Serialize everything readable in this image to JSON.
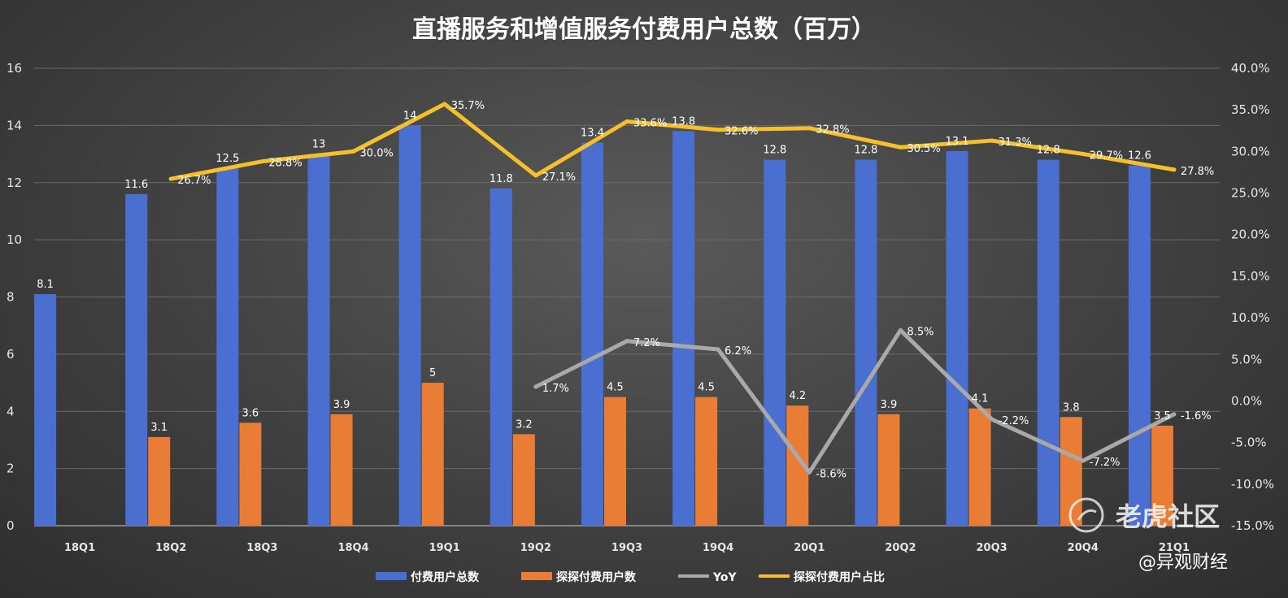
{
  "chart_data": {
    "type": "bar",
    "title": "直播服务和增值服务付费用户总数（百万）",
    "categories": [
      "18Q1",
      "18Q2",
      "18Q3",
      "18Q4",
      "19Q1",
      "19Q2",
      "19Q3",
      "19Q4",
      "20Q1",
      "20Q2",
      "20Q3",
      "20Q4",
      "21Q1"
    ],
    "left_axis": {
      "min": 0,
      "max": 16,
      "step": 2,
      "ticks": [
        "0",
        "2",
        "4",
        "6",
        "8",
        "10",
        "12",
        "14",
        "16"
      ]
    },
    "right_axis": {
      "min": -15,
      "max": 40,
      "step": 5,
      "ticks": [
        "-15.0%",
        "-10.0%",
        "-5.0%",
        "0.0%",
        "5.0%",
        "10.0%",
        "15.0%",
        "20.0%",
        "25.0%",
        "30.0%",
        "35.0%",
        "40.0%"
      ]
    },
    "grid": true,
    "legend_position": "bottom",
    "series": [
      {
        "name": "付费用户总数",
        "kind": "bar",
        "axis": "left",
        "color": "#4a6fd0",
        "values": [
          8.1,
          11.6,
          12.5,
          13,
          14,
          11.8,
          13.4,
          13.8,
          12.8,
          12.8,
          13.1,
          12.8,
          12.6
        ],
        "labels": [
          "8.1",
          "11.6",
          "12.5",
          "13",
          "14",
          "11.8",
          "13.4",
          "13.8",
          "12.8",
          "12.8",
          "13.1",
          "12.8",
          "12.6"
        ]
      },
      {
        "name": "探探付费用户数",
        "kind": "bar",
        "axis": "left",
        "color": "#ea7d36",
        "values": [
          null,
          3.1,
          3.6,
          3.9,
          5,
          3.2,
          4.5,
          4.5,
          4.2,
          3.9,
          4.1,
          3.8,
          3.5
        ],
        "labels": [
          "",
          "3.1",
          "3.6",
          "3.9",
          "5",
          "3.2",
          "4.5",
          "4.5",
          "4.2",
          "3.9",
          "4.1",
          "3.8",
          "3.5"
        ]
      },
      {
        "name": "YoY",
        "kind": "line",
        "axis": "right",
        "color": "#a9a9a9",
        "values": [
          null,
          null,
          null,
          null,
          null,
          1.7,
          7.2,
          6.2,
          -8.6,
          8.5,
          -2.2,
          -7.2,
          -1.6
        ],
        "labels": [
          "",
          "",
          "",
          "",
          "",
          "1.7%",
          "7.2%",
          "6.2%",
          "-8.6%",
          "8.5%",
          "-2.2%",
          "-7.2%",
          "-1.6%"
        ]
      },
      {
        "name": "探探付费用户占比",
        "kind": "line",
        "axis": "right",
        "color": "#f6c02a",
        "values": [
          null,
          26.7,
          28.8,
          30.0,
          35.7,
          27.1,
          33.6,
          32.6,
          32.8,
          30.5,
          31.3,
          29.7,
          27.8
        ],
        "labels": [
          "",
          "26.7%",
          "28.8%",
          "30.0%",
          "35.7%",
          "27.1%",
          "33.6%",
          "32.6%",
          "32.8%",
          "30.5%",
          "31.3%",
          "29.7%",
          "27.8%"
        ]
      }
    ]
  },
  "watermark": {
    "text": "老虎社区",
    "credit": "@异观财经"
  }
}
